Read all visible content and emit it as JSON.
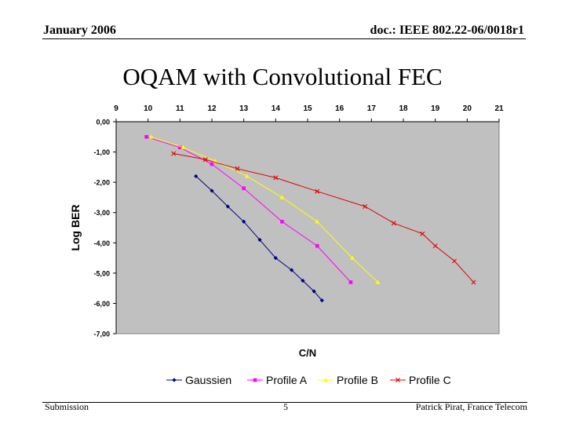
{
  "header": {
    "date": "January 2006",
    "doc": "doc.: IEEE 802.22-06/0018r1"
  },
  "slide_title": "OQAM with Convolutional FEC",
  "footer": {
    "left": "Submission",
    "page": "5",
    "right": "Patrick Pirat, France Telecom"
  },
  "colors": {
    "plot_bg": "#c0c0c0",
    "Gaussien": "#000080",
    "Profile A": "#ff00ff",
    "Profile B": "#ffff00",
    "Profile C": "#e00000"
  },
  "chart_data": {
    "type": "line",
    "title": "",
    "xlabel": "C/N",
    "ylabel": "Log BER",
    "xlim": [
      9,
      21
    ],
    "ylim": [
      -7,
      0
    ],
    "x_axis_position": "top",
    "x_ticks": [
      "9",
      "10",
      "11",
      "12",
      "13",
      "14",
      "15",
      "16",
      "17",
      "18",
      "19",
      "20",
      "21"
    ],
    "y_ticks": [
      "0,00",
      "-1,00",
      "-2,00",
      "-3,00",
      "-4,00",
      "-5,00",
      "-6,00",
      "-7,00"
    ],
    "legend_position": "bottom",
    "series": [
      {
        "name": "Gaussien",
        "marker": "diamond",
        "x": [
          11.5,
          12,
          12.5,
          13,
          13.5,
          14,
          14.5,
          14.85,
          15.2,
          15.45
        ],
        "y": [
          -1.8,
          -2.28,
          -2.8,
          -3.3,
          -3.9,
          -4.5,
          -4.9,
          -5.25,
          -5.6,
          -5.9
        ]
      },
      {
        "name": "Profile A",
        "marker": "square",
        "x": [
          9.95,
          11,
          12,
          13,
          14.2,
          15.3,
          16.35
        ],
        "y": [
          -0.5,
          -0.85,
          -1.4,
          -2.2,
          -3.3,
          -4.1,
          -5.3
        ]
      },
      {
        "name": "Profile B",
        "marker": "triangle",
        "x": [
          10.1,
          11.1,
          12.1,
          13.1,
          14.2,
          15.3,
          16.4,
          17.2
        ],
        "y": [
          -0.5,
          -0.85,
          -1.3,
          -1.8,
          -2.5,
          -3.3,
          -4.5,
          -5.3
        ]
      },
      {
        "name": "Profile C",
        "marker": "x",
        "x": [
          10.8,
          11.8,
          12.8,
          14,
          15.3,
          16.8,
          17.7,
          18.6,
          19,
          19.6,
          20.2
        ],
        "y": [
          -1.05,
          -1.25,
          -1.55,
          -1.85,
          -2.3,
          -2.8,
          -3.35,
          -3.7,
          -4.1,
          -4.6,
          -5.3
        ]
      }
    ]
  }
}
